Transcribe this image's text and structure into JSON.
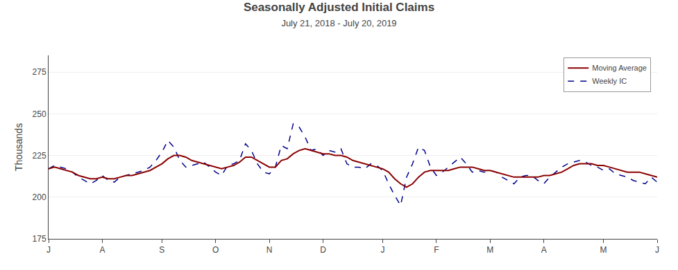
{
  "chart_data": {
    "type": "line",
    "title": "Seasonally Adjusted Initial Claims",
    "subtitle": "July 21, 2018 - July 20, 2019",
    "ylabel": "Thousands",
    "ylim": [
      175,
      285
    ],
    "yticks": [
      175,
      200,
      225,
      250,
      275
    ],
    "grid": true,
    "legend": "upper right",
    "categories": [
      "J",
      null,
      null,
      null,
      null,
      null,
      null,
      null,
      null,
      "A",
      null,
      null,
      null,
      null,
      null,
      null,
      null,
      null,
      null,
      "S",
      null,
      null,
      null,
      null,
      null,
      null,
      null,
      null,
      "O",
      null,
      null,
      null,
      null,
      null,
      null,
      null,
      null,
      "N",
      null,
      null,
      null,
      null,
      null,
      null,
      null,
      null,
      "D",
      null,
      null,
      null,
      null,
      null,
      null,
      null,
      null,
      null,
      "J",
      null,
      null,
      null,
      null,
      null,
      null,
      null,
      null,
      "F",
      null,
      null,
      null,
      null,
      null,
      null,
      null,
      null,
      "M",
      null,
      null,
      null,
      null,
      null,
      null,
      null,
      null,
      "A",
      null,
      null,
      null,
      null,
      null,
      null,
      null,
      null,
      null,
      "M",
      null,
      null,
      null,
      null,
      null,
      null,
      null,
      null,
      "J"
    ],
    "series": [
      {
        "name": "Weekly IC",
        "color": "#00008B",
        "line_style": "dashed",
        "values": [
          217,
          219,
          218,
          217,
          215,
          212,
          210,
          208,
          210,
          213,
          210,
          209,
          212,
          213,
          214,
          215,
          216,
          218,
          222,
          227,
          234,
          230,
          222,
          218,
          219,
          220,
          221,
          218,
          215,
          213,
          219,
          220,
          222,
          232,
          228,
          220,
          215,
          214,
          218,
          231,
          229,
          244,
          242,
          236,
          228,
          229,
          225,
          228,
          227,
          229,
          220,
          218,
          218,
          217,
          220,
          219,
          216,
          208,
          201,
          195,
          212,
          220,
          230,
          228,
          218,
          213,
          215,
          218,
          221,
          224,
          220,
          215,
          216,
          215,
          216,
          215,
          212,
          210,
          208,
          212,
          213,
          213,
          210,
          208,
          212,
          215,
          218,
          220,
          221,
          222,
          221,
          219,
          218,
          216,
          217,
          214,
          213,
          212,
          210,
          209,
          208,
          212,
          209
        ]
      },
      {
        "name": "Moving Average",
        "color": "#8B0000",
        "line_style": "solid",
        "values": [
          217,
          218,
          217,
          216,
          215,
          213,
          212,
          211,
          211,
          212,
          211,
          211,
          212,
          213,
          213,
          214,
          215,
          216,
          218,
          220,
          223,
          225,
          225,
          224,
          222,
          221,
          220,
          219,
          218,
          217,
          218,
          219,
          221,
          224,
          224,
          222,
          220,
          218,
          218,
          222,
          223,
          226,
          228,
          229,
          228,
          227,
          226,
          226,
          225,
          225,
          224,
          222,
          221,
          220,
          219,
          218,
          217,
          215,
          211,
          208,
          206,
          208,
          212,
          215,
          216,
          216,
          216,
          216,
          217,
          218,
          218,
          218,
          217,
          216,
          216,
          215,
          214,
          213,
          212,
          212,
          212,
          212,
          212,
          213,
          213,
          214,
          215,
          217,
          219,
          220,
          220,
          220,
          219,
          219,
          218,
          217,
          216,
          215,
          215,
          215,
          214,
          213,
          212
        ]
      }
    ]
  }
}
